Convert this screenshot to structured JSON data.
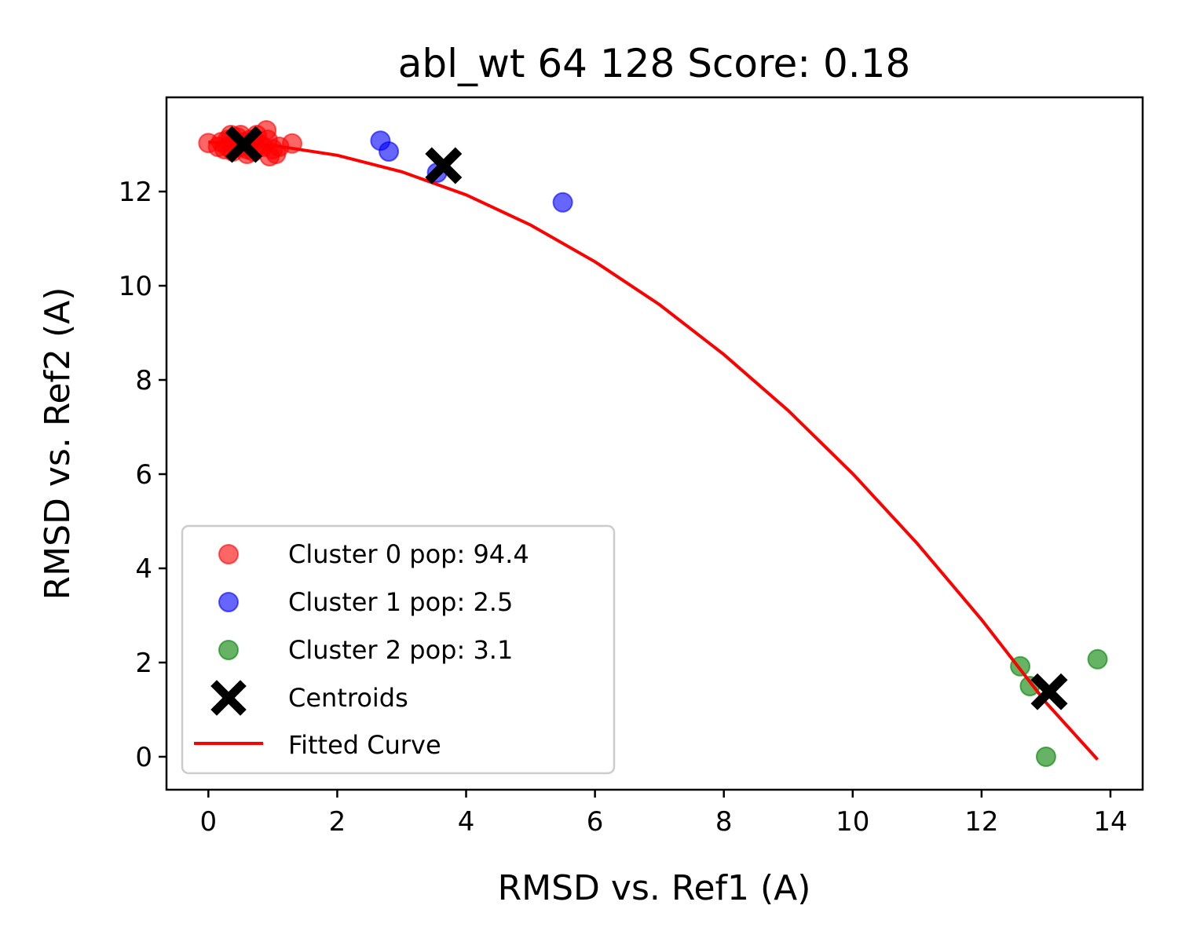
{
  "chart_data": {
    "type": "scatter",
    "title": "abl_wt 64 128 Score: 0.18",
    "xlabel": "RMSD vs. Ref1 (A)",
    "ylabel": "RMSD vs. Ref2 (A)",
    "xlim": [
      -0.65,
      14.5
    ],
    "ylim": [
      -0.7,
      14.0
    ],
    "xticks": [
      0,
      2,
      4,
      6,
      8,
      10,
      12,
      14
    ],
    "yticks": [
      0,
      2,
      4,
      6,
      8,
      10,
      12
    ],
    "grid": false,
    "legend_position": "lower-left",
    "series": [
      {
        "name": "Cluster 0 pop: 94.4",
        "color": "#ff0000",
        "alpha": 0.6,
        "points": [
          [
            0.0,
            13.03
          ],
          [
            0.15,
            12.95
          ],
          [
            0.2,
            13.05
          ],
          [
            0.25,
            12.9
          ],
          [
            0.3,
            13.1
          ],
          [
            0.35,
            13.2
          ],
          [
            0.38,
            12.85
          ],
          [
            0.4,
            13.0
          ],
          [
            0.45,
            13.15
          ],
          [
            0.5,
            12.95
          ],
          [
            0.55,
            13.05
          ],
          [
            0.6,
            12.9
          ],
          [
            0.65,
            13.1
          ],
          [
            0.7,
            12.85
          ],
          [
            0.75,
            13.2
          ],
          [
            0.8,
            13.0
          ],
          [
            0.85,
            12.95
          ],
          [
            0.9,
            13.3
          ],
          [
            0.92,
            13.1
          ],
          [
            0.95,
            12.75
          ],
          [
            1.0,
            12.9
          ],
          [
            1.05,
            12.8
          ],
          [
            1.1,
            12.95
          ],
          [
            1.3,
            13.02
          ],
          [
            0.6,
            12.8
          ],
          [
            0.3,
            12.95
          ],
          [
            0.7,
            13.05
          ],
          [
            0.5,
            13.2
          ]
        ]
      },
      {
        "name": "Cluster 1 pop: 2.5",
        "color": "#0000ff",
        "alpha": 0.6,
        "points": [
          [
            2.67,
            13.08
          ],
          [
            2.8,
            12.85
          ],
          [
            3.55,
            12.4
          ],
          [
            5.5,
            11.77
          ]
        ]
      },
      {
        "name": "Cluster 2 pop: 3.1",
        "color": "#008000",
        "alpha": 0.6,
        "points": [
          [
            12.6,
            1.92
          ],
          [
            12.75,
            1.5
          ],
          [
            13.0,
            0.0
          ],
          [
            13.8,
            2.07
          ]
        ]
      }
    ],
    "centroids": {
      "name": "Centroids",
      "color": "#000000",
      "points": [
        [
          0.55,
          13.0
        ],
        [
          3.65,
          12.55
        ],
        [
          13.05,
          1.38
        ]
      ]
    },
    "fitted_curve": {
      "name": "Fitted Curve",
      "color": "#ff0000",
      "x": [
        0.0,
        1.0,
        2.0,
        3.0,
        4.0,
        5.0,
        6.0,
        7.0,
        8.0,
        9.0,
        10.0,
        11.0,
        12.0,
        13.0,
        13.8
      ],
      "y": [
        13.05,
        12.98,
        12.77,
        12.42,
        11.93,
        11.29,
        10.51,
        9.6,
        8.54,
        7.35,
        6.01,
        4.53,
        2.91,
        1.15,
        -0.06
      ]
    }
  }
}
